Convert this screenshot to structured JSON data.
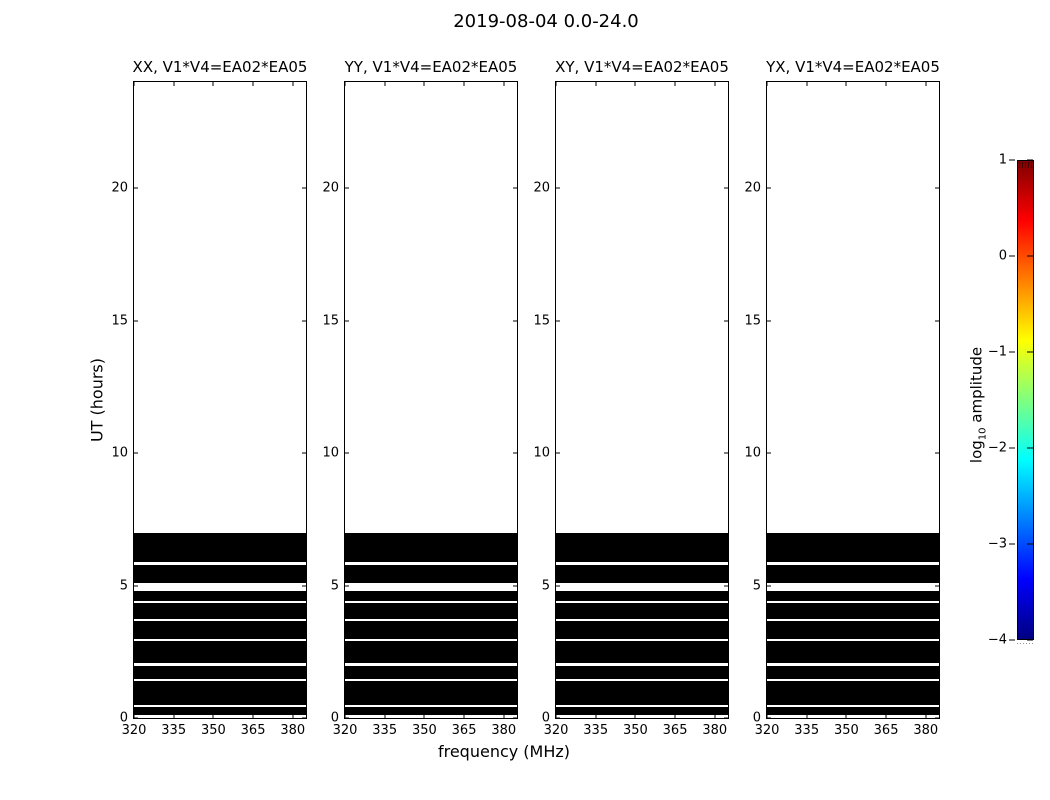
{
  "figure": {
    "title": "2019-08-04 0.0-24.0",
    "background": "#ffffff"
  },
  "axes": {
    "xlabel": "frequency (MHz)",
    "ylabel": "UT (hours)"
  },
  "panels": [
    {
      "id": "xx",
      "title": "XX, V1*V4=EA02*EA05"
    },
    {
      "id": "yy",
      "title": "YY, V1*V4=EA02*EA05"
    },
    {
      "id": "xy",
      "title": "XY, V1*V4=EA02*EA05"
    },
    {
      "id": "yx",
      "title": "YX, V1*V4=EA02*EA05"
    }
  ],
  "colorbar": {
    "label_pre": "log",
    "label_sub": "10",
    "label_post": " amplitude",
    "tick_labels": [
      "1",
      "0",
      "−1",
      "−2",
      "−3",
      "−4"
    ]
  },
  "chart_data": {
    "type": "heatmap",
    "title": "2019-08-04 0.0-24.0",
    "xlabel": "frequency (MHz)",
    "ylabel": "UT (hours)",
    "panel_titles": [
      "XX, V1*V4=EA02*EA05",
      "YY, V1*V4=EA02*EA05",
      "XY, V1*V4=EA02*EA05",
      "YX, V1*V4=EA02*EA05"
    ],
    "xlim": [
      320,
      385
    ],
    "ylim": [
      0,
      24
    ],
    "xticks": [
      320,
      335,
      350,
      365,
      380
    ],
    "yticks": [
      0,
      5,
      10,
      15,
      20
    ],
    "grid": false,
    "scan_fill_color": "#000000",
    "scan_extent_mhz": [
      320,
      385
    ],
    "scans_ut_hours": [
      [
        0.11,
        0.4
      ],
      [
        0.51,
        1.39
      ],
      [
        1.49,
        1.96
      ],
      [
        2.07,
        2.9
      ],
      [
        2.99,
        3.65
      ],
      [
        3.74,
        4.34
      ],
      [
        4.42,
        4.81
      ],
      [
        5.08,
        5.77
      ],
      [
        5.87,
        7.0
      ]
    ],
    "colorbar": {
      "label": "log10 amplitude",
      "colormap": "jet",
      "vmin": -4,
      "vmax": 1,
      "ticks": [
        1,
        0,
        -1,
        -2,
        -3,
        -4
      ],
      "position": "right"
    }
  }
}
